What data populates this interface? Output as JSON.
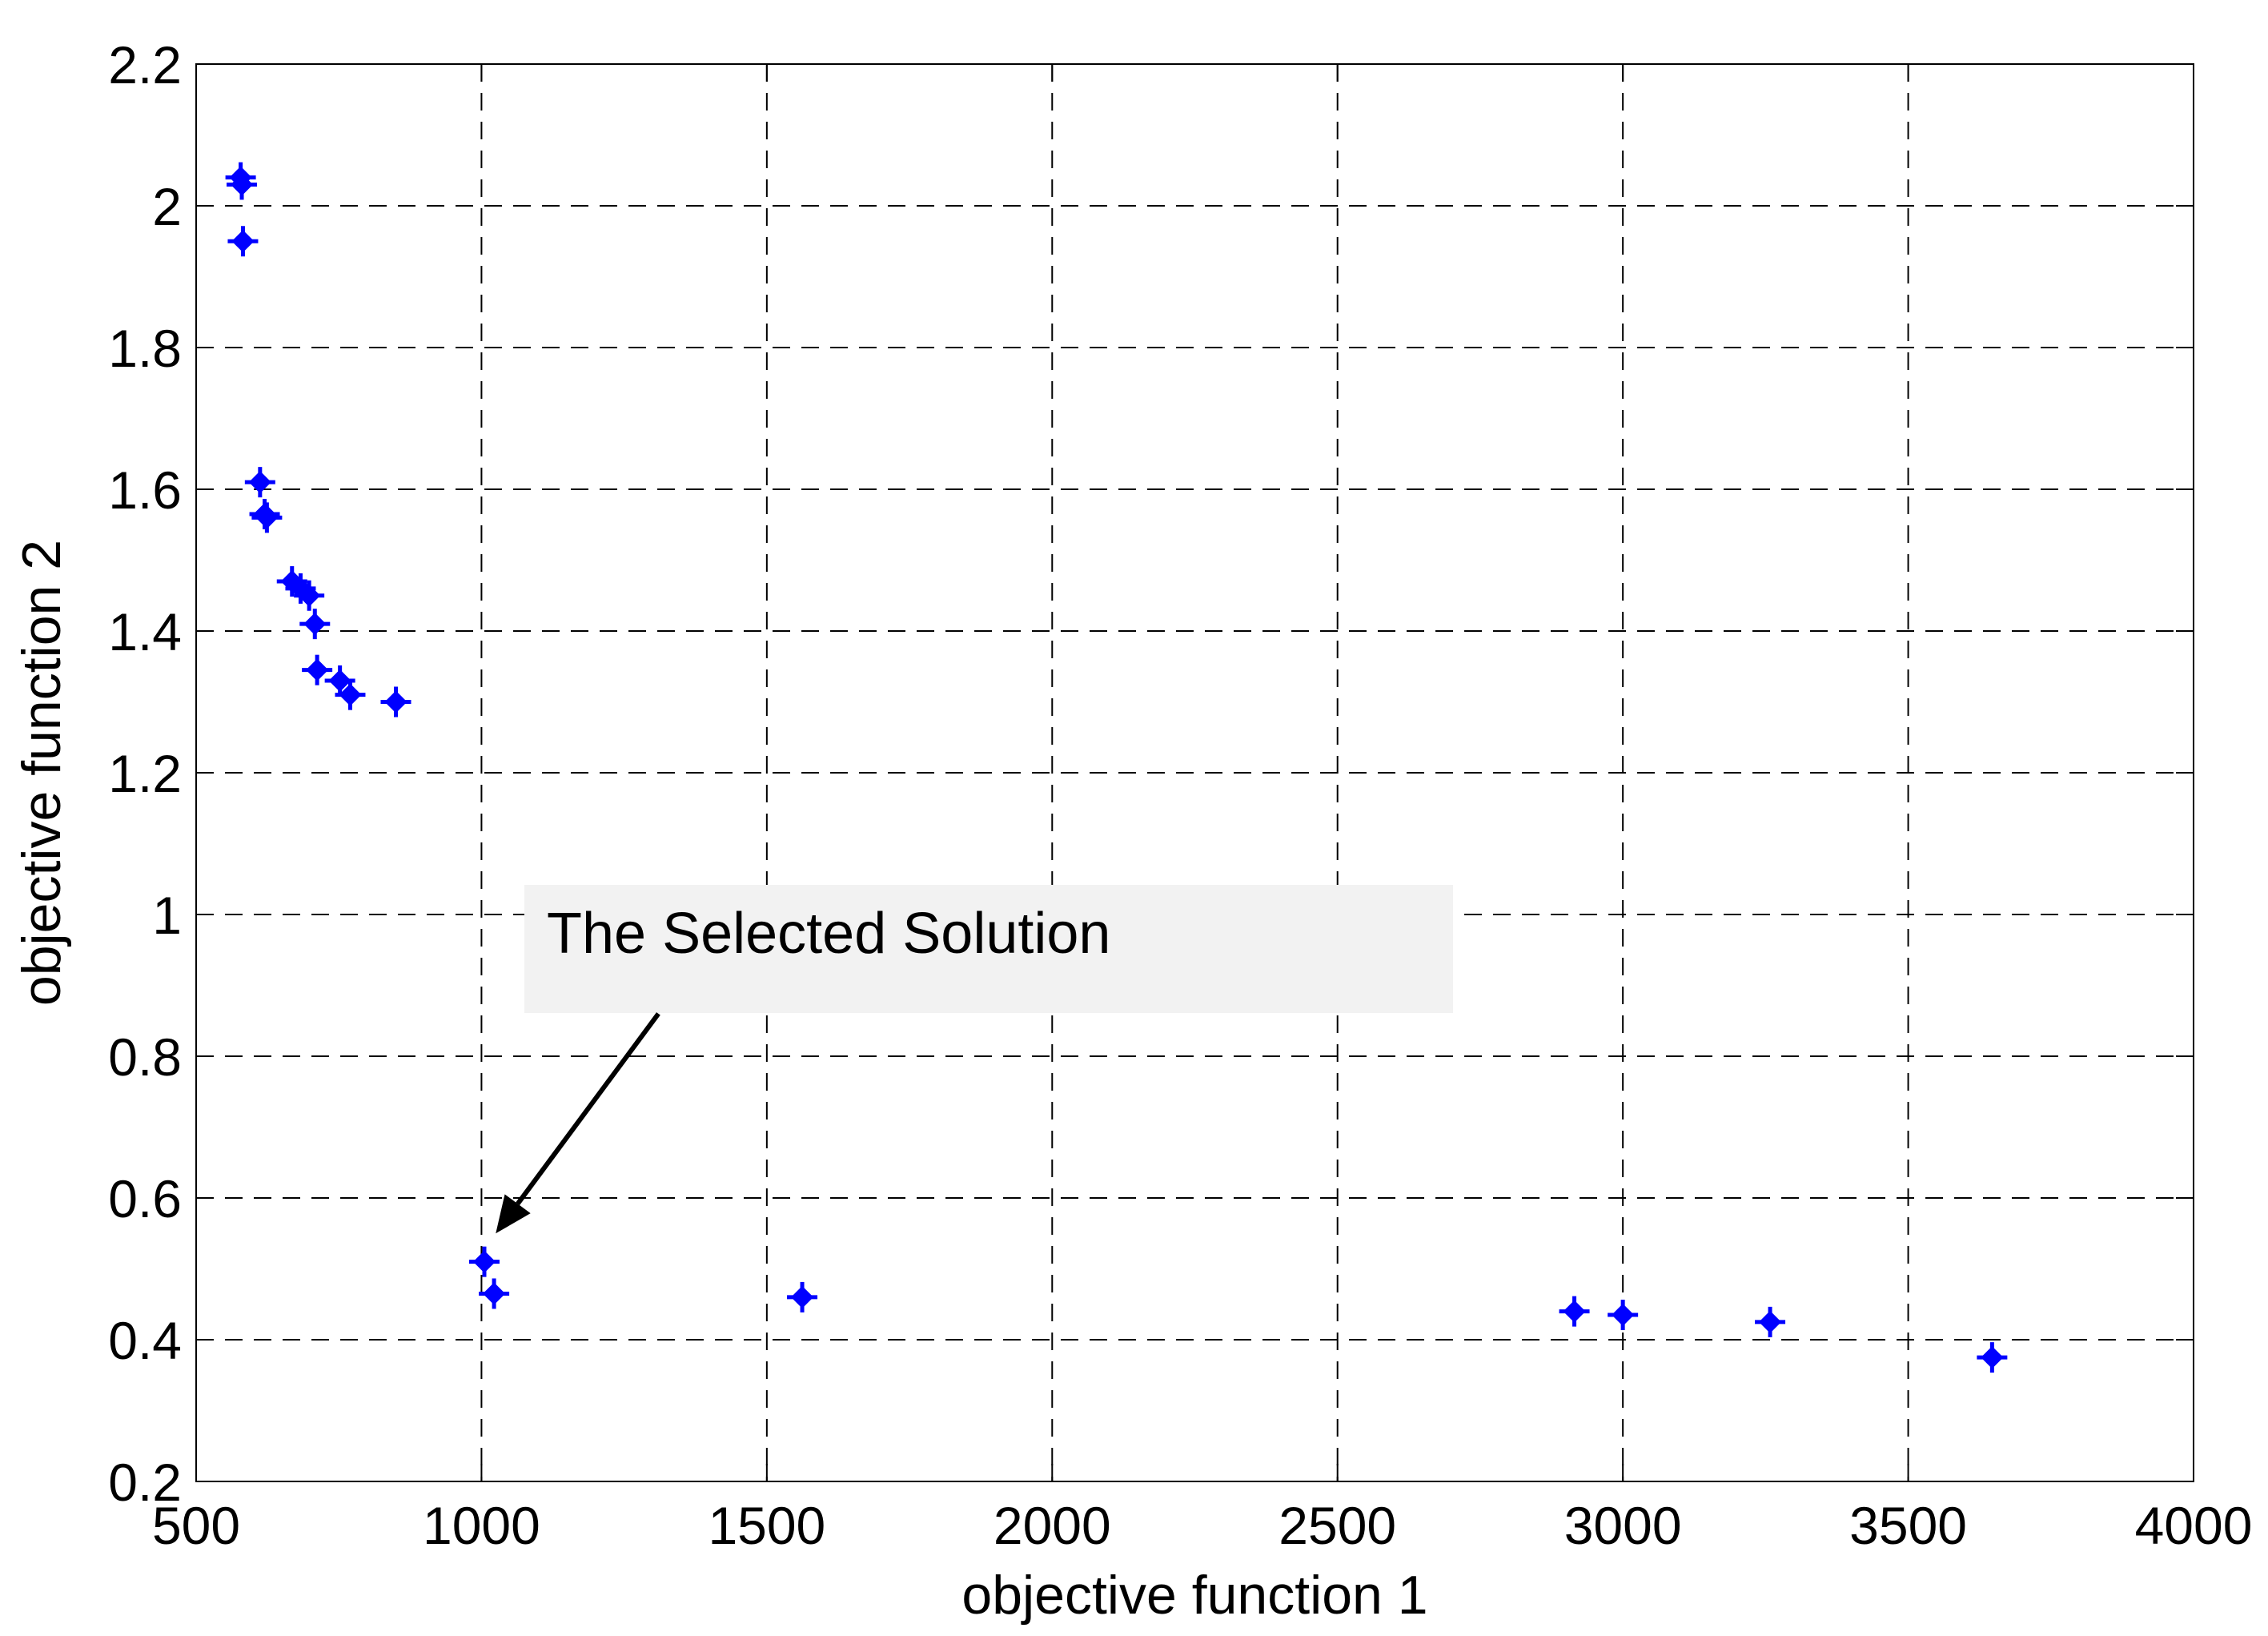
{
  "chart_data": {
    "type": "scatter",
    "xlabel": "objective function 1",
    "ylabel": "objective function 2",
    "xlim": [
      500,
      4000
    ],
    "ylim": [
      0.2,
      2.2
    ],
    "xticks": [
      "500",
      "1000",
      "1500",
      "2000",
      "2500",
      "3000",
      "3500",
      "4000"
    ],
    "yticks": [
      "0.2",
      "0.4",
      "0.6",
      "0.8",
      "1",
      "1.2",
      "1.4",
      "1.6",
      "1.8",
      "2",
      "2.2"
    ],
    "grid": true,
    "marker_color": "#0000ff",
    "points": [
      {
        "x": 578,
        "y": 2.04
      },
      {
        "x": 580,
        "y": 2.03
      },
      {
        "x": 582,
        "y": 1.95
      },
      {
        "x": 612,
        "y": 1.61
      },
      {
        "x": 620,
        "y": 1.565
      },
      {
        "x": 624,
        "y": 1.56
      },
      {
        "x": 668,
        "y": 1.47
      },
      {
        "x": 683,
        "y": 1.46
      },
      {
        "x": 698,
        "y": 1.45
      },
      {
        "x": 708,
        "y": 1.41
      },
      {
        "x": 712,
        "y": 1.345
      },
      {
        "x": 752,
        "y": 1.33
      },
      {
        "x": 770,
        "y": 1.31
      },
      {
        "x": 850,
        "y": 1.3
      },
      {
        "x": 1005,
        "y": 0.51
      },
      {
        "x": 1022,
        "y": 0.465
      },
      {
        "x": 1562,
        "y": 0.46
      },
      {
        "x": 2915,
        "y": 0.44
      },
      {
        "x": 3000,
        "y": 0.435
      },
      {
        "x": 3258,
        "y": 0.425
      },
      {
        "x": 3647,
        "y": 0.375
      }
    ],
    "annotation": {
      "text": "The Selected Solution",
      "target": {
        "x": 1025,
        "y": 0.55
      },
      "arrow_from": {
        "x": 1310,
        "y": 0.86
      }
    }
  }
}
